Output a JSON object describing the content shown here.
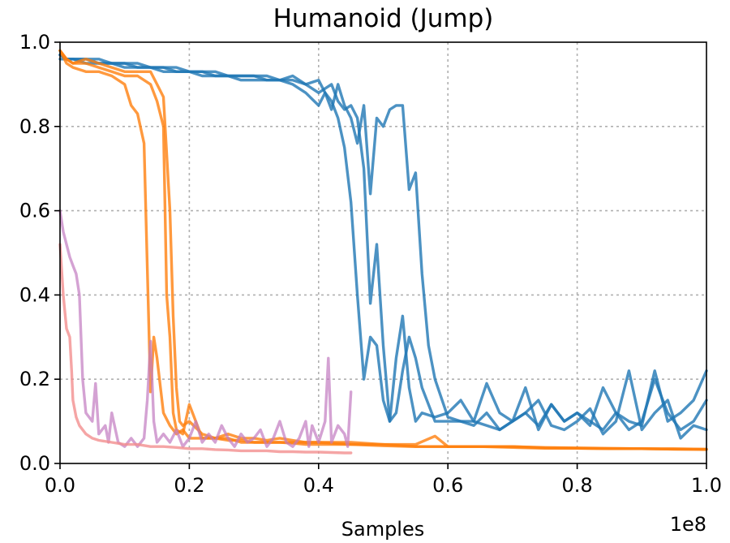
{
  "chart_data": {
    "type": "line",
    "title": "Humanoid (Jump)",
    "xlabel": "Samples",
    "ylabel": "",
    "x_offset_label": "1e8",
    "xlim": [
      0,
      1.0
    ],
    "ylim": [
      0,
      1.0
    ],
    "xticks": [
      0.0,
      0.2,
      0.4,
      0.6,
      0.8,
      1.0
    ],
    "xtick_labels": [
      "0.0",
      "0.2",
      "0.4",
      "0.6",
      "0.8",
      "1.0"
    ],
    "yticks": [
      0.0,
      0.2,
      0.4,
      0.6,
      0.8,
      1.0
    ],
    "ytick_labels": [
      "0.0",
      "0.2",
      "0.4",
      "0.6",
      "0.8",
      "1.0"
    ],
    "grid": true,
    "series": [
      {
        "color": "#1f77b4",
        "opacity": 0.8,
        "x": [
          0,
          0.01,
          0.02,
          0.04,
          0.06,
          0.08,
          0.1,
          0.12,
          0.14,
          0.16,
          0.18,
          0.2,
          0.22,
          0.24,
          0.26,
          0.28,
          0.3,
          0.32,
          0.34,
          0.36,
          0.38,
          0.4,
          0.41,
          0.42,
          0.43,
          0.44,
          0.45,
          0.46,
          0.47,
          0.48,
          0.49,
          0.5,
          0.51,
          0.52,
          0.53,
          0.54,
          0.55,
          0.56,
          0.58,
          0.6,
          0.62,
          0.64,
          0.66,
          0.68,
          0.7,
          0.72,
          0.74,
          0.76,
          0.78,
          0.8,
          0.82,
          0.84,
          0.86,
          0.88,
          0.9,
          0.92,
          0.94,
          0.96,
          0.98,
          1.0
        ],
        "y": [
          0.97,
          0.96,
          0.96,
          0.96,
          0.96,
          0.95,
          0.95,
          0.95,
          0.94,
          0.94,
          0.94,
          0.93,
          0.93,
          0.93,
          0.92,
          0.92,
          0.92,
          0.92,
          0.91,
          0.91,
          0.9,
          0.91,
          0.88,
          0.86,
          0.82,
          0.75,
          0.62,
          0.4,
          0.2,
          0.3,
          0.28,
          0.15,
          0.1,
          0.25,
          0.35,
          0.18,
          0.1,
          0.12,
          0.11,
          0.12,
          0.15,
          0.1,
          0.19,
          0.12,
          0.1,
          0.18,
          0.08,
          0.14,
          0.1,
          0.12,
          0.09,
          0.18,
          0.12,
          0.08,
          0.1,
          0.2,
          0.12,
          0.08,
          0.1,
          0.15
        ]
      },
      {
        "color": "#1f77b4",
        "opacity": 0.8,
        "x": [
          0,
          0.01,
          0.02,
          0.04,
          0.06,
          0.08,
          0.1,
          0.12,
          0.14,
          0.16,
          0.18,
          0.2,
          0.22,
          0.24,
          0.26,
          0.28,
          0.3,
          0.32,
          0.34,
          0.36,
          0.38,
          0.4,
          0.41,
          0.42,
          0.43,
          0.44,
          0.45,
          0.46,
          0.47,
          0.48,
          0.49,
          0.5,
          0.51,
          0.52,
          0.53,
          0.54,
          0.55,
          0.56,
          0.58,
          0.6,
          0.62,
          0.64,
          0.66,
          0.68,
          0.7,
          0.72,
          0.74,
          0.76,
          0.78,
          0.8,
          0.82,
          0.84,
          0.86,
          0.88,
          0.9,
          0.92,
          0.94,
          0.96,
          0.98,
          1.0
        ],
        "y": [
          0.97,
          0.96,
          0.96,
          0.96,
          0.95,
          0.95,
          0.95,
          0.94,
          0.94,
          0.94,
          0.93,
          0.93,
          0.93,
          0.92,
          0.92,
          0.92,
          0.92,
          0.91,
          0.91,
          0.92,
          0.9,
          0.88,
          0.89,
          0.9,
          0.86,
          0.84,
          0.85,
          0.82,
          0.7,
          0.38,
          0.52,
          0.28,
          0.1,
          0.12,
          0.22,
          0.3,
          0.25,
          0.18,
          0.1,
          0.1,
          0.1,
          0.09,
          0.12,
          0.08,
          0.1,
          0.12,
          0.15,
          0.09,
          0.08,
          0.1,
          0.13,
          0.07,
          0.1,
          0.22,
          0.08,
          0.12,
          0.15,
          0.06,
          0.09,
          0.08
        ]
      },
      {
        "color": "#1f77b4",
        "opacity": 0.8,
        "x": [
          0,
          0.01,
          0.02,
          0.04,
          0.06,
          0.08,
          0.1,
          0.12,
          0.14,
          0.16,
          0.18,
          0.2,
          0.22,
          0.24,
          0.26,
          0.28,
          0.3,
          0.32,
          0.34,
          0.36,
          0.38,
          0.4,
          0.41,
          0.42,
          0.43,
          0.44,
          0.45,
          0.46,
          0.47,
          0.48,
          0.49,
          0.5,
          0.51,
          0.52,
          0.53,
          0.54,
          0.55,
          0.56,
          0.57,
          0.58,
          0.6,
          0.62,
          0.64,
          0.66,
          0.68,
          0.7,
          0.72,
          0.74,
          0.76,
          0.78,
          0.8,
          0.82,
          0.84,
          0.86,
          0.88,
          0.9,
          0.92,
          0.94,
          0.96,
          0.98,
          1.0
        ],
        "y": [
          0.96,
          0.96,
          0.96,
          0.95,
          0.95,
          0.95,
          0.94,
          0.94,
          0.94,
          0.93,
          0.93,
          0.93,
          0.92,
          0.92,
          0.92,
          0.91,
          0.91,
          0.91,
          0.91,
          0.9,
          0.88,
          0.85,
          0.88,
          0.84,
          0.9,
          0.85,
          0.82,
          0.76,
          0.85,
          0.64,
          0.82,
          0.8,
          0.84,
          0.85,
          0.85,
          0.65,
          0.69,
          0.45,
          0.28,
          0.2,
          0.11,
          0.1,
          0.1,
          0.09,
          0.08,
          0.1,
          0.12,
          0.09,
          0.14,
          0.1,
          0.12,
          0.1,
          0.08,
          0.12,
          0.1,
          0.09,
          0.22,
          0.1,
          0.12,
          0.15,
          0.22
        ]
      },
      {
        "color": "#ff7f0e",
        "opacity": 0.8,
        "x": [
          0,
          0.01,
          0.02,
          0.04,
          0.06,
          0.08,
          0.1,
          0.11,
          0.12,
          0.13,
          0.14,
          0.145,
          0.15,
          0.16,
          0.17,
          0.18,
          0.19,
          0.2,
          0.22,
          0.24,
          0.26,
          0.28,
          0.3,
          0.32,
          0.34,
          0.36,
          0.38,
          0.4,
          0.45,
          0.5,
          0.55,
          0.6,
          0.65,
          0.7,
          0.75,
          0.8,
          0.85,
          0.9,
          0.95,
          1.0
        ],
        "y": [
          0.98,
          0.95,
          0.94,
          0.93,
          0.93,
          0.92,
          0.9,
          0.85,
          0.83,
          0.76,
          0.17,
          0.3,
          0.25,
          0.12,
          0.09,
          0.07,
          0.08,
          0.06,
          0.06,
          0.06,
          0.06,
          0.05,
          0.05,
          0.05,
          0.05,
          0.05,
          0.05,
          0.05,
          0.045,
          0.045,
          0.04,
          0.04,
          0.04,
          0.04,
          0.038,
          0.037,
          0.036,
          0.035,
          0.035,
          0.034
        ]
      },
      {
        "color": "#ff7f0e",
        "opacity": 0.8,
        "x": [
          0,
          0.01,
          0.02,
          0.04,
          0.06,
          0.08,
          0.1,
          0.12,
          0.14,
          0.15,
          0.16,
          0.165,
          0.17,
          0.175,
          0.18,
          0.19,
          0.2,
          0.22,
          0.24,
          0.26,
          0.28,
          0.3,
          0.32,
          0.34,
          0.36,
          0.38,
          0.4,
          0.45,
          0.5,
          0.55,
          0.6,
          0.65,
          0.7,
          0.75,
          0.8,
          0.85,
          0.9,
          0.95,
          1.0
        ],
        "y": [
          0.98,
          0.96,
          0.95,
          0.95,
          0.94,
          0.93,
          0.92,
          0.92,
          0.9,
          0.86,
          0.8,
          0.4,
          0.3,
          0.12,
          0.08,
          0.07,
          0.14,
          0.06,
          0.06,
          0.055,
          0.055,
          0.05,
          0.05,
          0.05,
          0.048,
          0.045,
          0.045,
          0.045,
          0.042,
          0.04,
          0.04,
          0.04,
          0.038,
          0.036,
          0.036,
          0.035,
          0.035,
          0.034,
          0.033
        ]
      },
      {
        "color": "#ff7f0e",
        "opacity": 0.8,
        "x": [
          0,
          0.01,
          0.02,
          0.04,
          0.06,
          0.08,
          0.1,
          0.12,
          0.14,
          0.15,
          0.16,
          0.17,
          0.175,
          0.18,
          0.185,
          0.19,
          0.2,
          0.22,
          0.24,
          0.26,
          0.28,
          0.3,
          0.32,
          0.34,
          0.36,
          0.38,
          0.4,
          0.45,
          0.5,
          0.55,
          0.58,
          0.6,
          0.65,
          0.7,
          0.75,
          0.8,
          0.85,
          0.9,
          0.95,
          1.0
        ],
        "y": [
          0.98,
          0.96,
          0.95,
          0.96,
          0.95,
          0.94,
          0.93,
          0.93,
          0.93,
          0.9,
          0.87,
          0.6,
          0.35,
          0.18,
          0.1,
          0.09,
          0.1,
          0.07,
          0.06,
          0.07,
          0.06,
          0.06,
          0.055,
          0.06,
          0.055,
          0.05,
          0.05,
          0.05,
          0.045,
          0.045,
          0.065,
          0.04,
          0.04,
          0.04,
          0.037,
          0.036,
          0.035,
          0.035,
          0.034,
          0.034
        ]
      },
      {
        "color": "#c27ac0",
        "opacity": 0.7,
        "x": [
          0,
          0.005,
          0.01,
          0.015,
          0.02,
          0.025,
          0.03,
          0.035,
          0.04,
          0.05,
          0.055,
          0.06,
          0.07,
          0.075,
          0.08,
          0.09,
          0.1,
          0.11,
          0.12,
          0.13,
          0.135,
          0.14,
          0.145,
          0.15,
          0.16,
          0.17,
          0.18,
          0.19,
          0.2,
          0.21,
          0.22,
          0.23,
          0.24,
          0.25,
          0.26,
          0.27,
          0.28,
          0.29,
          0.3,
          0.31,
          0.32,
          0.33,
          0.34,
          0.35,
          0.36,
          0.37,
          0.38,
          0.385,
          0.39,
          0.4,
          0.41,
          0.415,
          0.42,
          0.43,
          0.44,
          0.445,
          0.45
        ],
        "y": [
          0.6,
          0.55,
          0.52,
          0.49,
          0.47,
          0.45,
          0.4,
          0.2,
          0.12,
          0.1,
          0.19,
          0.07,
          0.09,
          0.05,
          0.12,
          0.05,
          0.04,
          0.06,
          0.04,
          0.06,
          0.15,
          0.29,
          0.1,
          0.05,
          0.07,
          0.05,
          0.08,
          0.04,
          0.06,
          0.1,
          0.05,
          0.07,
          0.05,
          0.09,
          0.06,
          0.04,
          0.07,
          0.05,
          0.06,
          0.08,
          0.04,
          0.06,
          0.1,
          0.05,
          0.04,
          0.06,
          0.1,
          0.04,
          0.09,
          0.05,
          0.1,
          0.25,
          0.05,
          0.09,
          0.07,
          0.04,
          0.17
        ]
      },
      {
        "color": "#f28e8e",
        "opacity": 0.8,
        "x": [
          0,
          0.005,
          0.01,
          0.015,
          0.018,
          0.02,
          0.025,
          0.03,
          0.04,
          0.05,
          0.06,
          0.08,
          0.1,
          0.12,
          0.14,
          0.16,
          0.18,
          0.2,
          0.22,
          0.24,
          0.26,
          0.28,
          0.3,
          0.32,
          0.34,
          0.36,
          0.38,
          0.4,
          0.42,
          0.44,
          0.45
        ],
        "y": [
          0.52,
          0.4,
          0.32,
          0.3,
          0.22,
          0.15,
          0.11,
          0.09,
          0.07,
          0.06,
          0.055,
          0.05,
          0.045,
          0.045,
          0.04,
          0.04,
          0.038,
          0.035,
          0.035,
          0.033,
          0.032,
          0.03,
          0.03,
          0.03,
          0.028,
          0.028,
          0.027,
          0.027,
          0.026,
          0.025,
          0.025
        ]
      }
    ]
  }
}
